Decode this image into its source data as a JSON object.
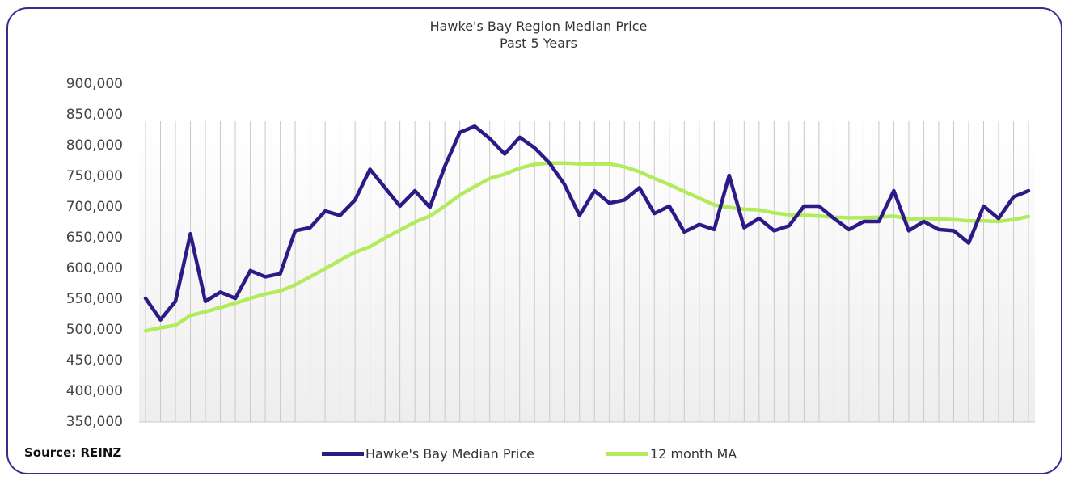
{
  "chart_data": {
    "type": "line",
    "title": "Hawke's Bay Region Median Price",
    "subtitle": "Past 5 Years",
    "xlabel": "",
    "ylabel": "",
    "ylim": [
      350000,
      900000
    ],
    "y_ticks": [
      "350,000",
      "400,000",
      "450,000",
      "500,000",
      "550,000",
      "600,000",
      "650,000",
      "700,000",
      "750,000",
      "800,000",
      "850,000",
      "900,000"
    ],
    "grid": "vertical",
    "legend_position": "bottom",
    "source": "Source: REINZ",
    "series": [
      {
        "name": "Hawke's Bay Median Price",
        "color": "#2e1a87",
        "values": [
          550000,
          515000,
          545000,
          655000,
          545000,
          560000,
          550000,
          595000,
          585000,
          590000,
          660000,
          665000,
          692000,
          685000,
          710000,
          760000,
          730000,
          700000,
          725000,
          698000,
          765000,
          820000,
          830000,
          810000,
          785000,
          812000,
          795000,
          770000,
          735000,
          685000,
          725000,
          705000,
          710000,
          730000,
          688000,
          700000,
          658000,
          670000,
          662000,
          750000,
          665000,
          680000,
          660000,
          668000,
          700000,
          700000,
          680000,
          662000,
          675000,
          675000,
          725000,
          660000,
          675000,
          662000,
          660000,
          640000,
          700000,
          680000,
          715000,
          725000
        ]
      },
      {
        "name": "12 month MA",
        "color": "#b2ec5d",
        "values": [
          497000,
          502000,
          506000,
          522000,
          528000,
          535000,
          542000,
          550000,
          557000,
          562000,
          572000,
          585000,
          598000,
          612000,
          625000,
          634000,
          648000,
          661000,
          674000,
          684000,
          700000,
          718000,
          732000,
          745000,
          752000,
          762000,
          768000,
          770000,
          770000,
          769000,
          769000,
          769000,
          764000,
          756000,
          745000,
          735000,
          724000,
          713000,
          702000,
          698000,
          695000,
          694000,
          689000,
          686000,
          685000,
          684000,
          682000,
          681000,
          681000,
          682000,
          684000,
          679000,
          680000,
          679000,
          678000,
          676000,
          676000,
          675000,
          678000,
          683000
        ]
      }
    ]
  }
}
